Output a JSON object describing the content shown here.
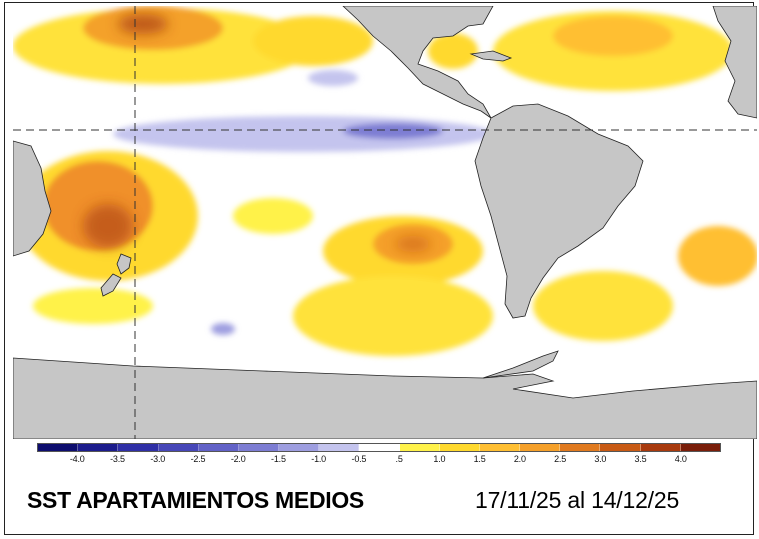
{
  "title": "SST APARTAMIENTOS MEDIOS",
  "period": "17/11/25 al 14/12/25",
  "legend": {
    "ticks": [
      "-4.0",
      "-3.5",
      "-3.0",
      "-2.5",
      "-2.0",
      "-1.5",
      "-1.0",
      "-0.5",
      ".5",
      "1.0",
      "1.5",
      "2.0",
      "2.5",
      "3.0",
      "3.5",
      "4.0"
    ],
    "colors": [
      "#0d0d6e",
      "#1c1c8c",
      "#2f2fa6",
      "#4747b8",
      "#6262c7",
      "#7d7dd3",
      "#9e9ee0",
      "#c4c4ee",
      "#ffffff",
      "#fff24a",
      "#ffd92e",
      "#ffbf33",
      "#f5a02a",
      "#e07a1f",
      "#c85a14",
      "#a83a0e",
      "#7a1e0a"
    ]
  },
  "colors": {
    "ocean": "#ffffff",
    "land": "#c6c6c6",
    "grid": "#333333",
    "positive_anomaly": "#ffd92e",
    "warm_core": "#a83a0e",
    "negative_anomaly": "#9e9ee0"
  }
}
